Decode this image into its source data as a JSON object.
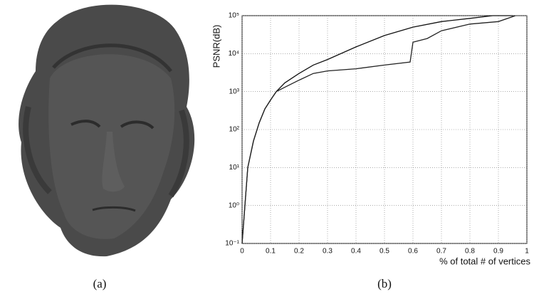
{
  "captions": [
    "(a)",
    "(b)"
  ],
  "chart_data": {
    "type": "line",
    "ylabel": "PSNR(dB)",
    "xlabel": "% of total # of vertices",
    "log_y": true,
    "grid": true,
    "xlim": [
      0,
      1
    ],
    "xticks": [
      0,
      0.1,
      0.2,
      0.3,
      0.4,
      0.5,
      0.6,
      0.7,
      0.8,
      0.9,
      1
    ],
    "ylim": [
      0.1,
      100000
    ],
    "yticks": [
      {
        "value": 0.1,
        "label": "10⁻¹"
      },
      {
        "value": 1,
        "label": "10⁰"
      },
      {
        "value": 10,
        "label": "10¹"
      },
      {
        "value": 100,
        "label": "10²"
      },
      {
        "value": 1000,
        "label": "10³"
      },
      {
        "value": 10000,
        "label": "10⁴"
      },
      {
        "value": 100000,
        "label": "10⁵"
      }
    ],
    "series": [
      {
        "color": "#111111",
        "x": [
          0,
          0.01,
          0.02,
          0.04,
          0.06,
          0.08,
          0.1,
          0.12,
          0.15,
          0.2,
          0.25,
          0.3,
          0.4,
          0.5,
          0.6,
          0.7,
          0.8,
          0.88,
          0.95
        ],
        "values": [
          0.1,
          1,
          10,
          50,
          150,
          350,
          600,
          1000,
          1700,
          3000,
          5000,
          7000,
          15000,
          30000,
          50000,
          70000,
          85000,
          100000,
          100000
        ]
      },
      {
        "color": "#222222",
        "x": [
          0,
          0.01,
          0.02,
          0.04,
          0.06,
          0.08,
          0.1,
          0.12,
          0.15,
          0.2,
          0.25,
          0.3,
          0.4,
          0.5,
          0.59,
          0.6,
          0.65,
          0.7,
          0.8,
          0.9,
          0.96
        ],
        "values": [
          0.1,
          1,
          10,
          50,
          150,
          350,
          600,
          1000,
          1300,
          2000,
          3000,
          3500,
          4000,
          5000,
          6000,
          20000,
          25000,
          40000,
          60000,
          70000,
          100000
        ]
      }
    ]
  }
}
